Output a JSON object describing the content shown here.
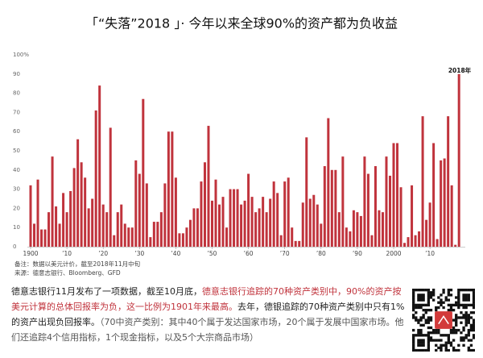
{
  "chart_data": {
    "type": "bar",
    "title": "「“失落”2018 」· 今年以来全球90%的资产都为负收益",
    "annotation": "2018年",
    "categories": [
      "1900",
      null,
      null,
      null,
      null,
      null,
      null,
      null,
      null,
      null,
      "’10",
      null,
      null,
      null,
      null,
      null,
      null,
      null,
      null,
      null,
      "’20",
      null,
      null,
      null,
      null,
      null,
      null,
      null,
      null,
      null,
      "’30",
      null,
      null,
      null,
      null,
      null,
      null,
      null,
      null,
      null,
      "’40",
      null,
      null,
      null,
      null,
      null,
      null,
      null,
      null,
      null,
      "’50",
      null,
      null,
      null,
      null,
      null,
      null,
      null,
      null,
      null,
      "’60",
      null,
      null,
      null,
      null,
      null,
      null,
      null,
      null,
      null,
      "’70",
      null,
      null,
      null,
      null,
      null,
      null,
      null,
      null,
      null,
      "’80",
      null,
      null,
      null,
      null,
      null,
      null,
      null,
      null,
      null,
      "’90",
      null,
      null,
      null,
      null,
      null,
      null,
      null,
      null,
      null,
      "2000",
      null,
      null,
      null,
      null,
      null,
      null,
      null,
      null,
      null,
      "’10",
      null,
      null,
      null,
      null,
      null,
      null,
      null,
      null
    ],
    "values": [
      32,
      12,
      35,
      9,
      9,
      18,
      47,
      21,
      12,
      28,
      18,
      29,
      41,
      56,
      44,
      36,
      20,
      25,
      71,
      84,
      22,
      18,
      62,
      6,
      18,
      22,
      12,
      10,
      10,
      45,
      38,
      77,
      33,
      5,
      13,
      13,
      18,
      33,
      60,
      60,
      36,
      7,
      7,
      10,
      14,
      20,
      20,
      34,
      44,
      63,
      24,
      35,
      22,
      26,
      10,
      30,
      30,
      30,
      22,
      24,
      38,
      26,
      18,
      20,
      26,
      18,
      25,
      34,
      28,
      6,
      34,
      36,
      10,
      3,
      3,
      23,
      57,
      25,
      27,
      22,
      12,
      42,
      67,
      40,
      40,
      18,
      47,
      10,
      8,
      19,
      18,
      16,
      47,
      38,
      6,
      42,
      19,
      18,
      47,
      37,
      54,
      54,
      31,
      2,
      5,
      32,
      6,
      8,
      68,
      14,
      23,
      54,
      4,
      45,
      46,
      68,
      32,
      1,
      90
    ],
    "color": "#c0333c",
    "ylim": [
      0,
      100
    ],
    "yticks": [
      0,
      10,
      20,
      30,
      40,
      50,
      60,
      70,
      80,
      90,
      {
        "value": 100,
        "label": "100%"
      }
    ],
    "grid": false,
    "notes": [
      "备注：数据以美元计价，截至2018年11月中旬",
      "来源：德意志银行、Bloomberg、GFD"
    ]
  },
  "body_text": [
    "德意志银行11月发布了一项数据，截至10月底，",
    "德意志银行追踪的70种资产类别中，90%的资产按美元计算的总体回报率为负，这一比例为1901年来最高。",
    "去年，德银追踪的70种资产类别中只有1%的资产出现负回报率。",
    "（70中资产类别：其中40个属于发达国家市场，20个属于发展中国家市场。他们还追踪4个信用指标，1个现金指标，以及5个大宗商品市场）"
  ]
}
